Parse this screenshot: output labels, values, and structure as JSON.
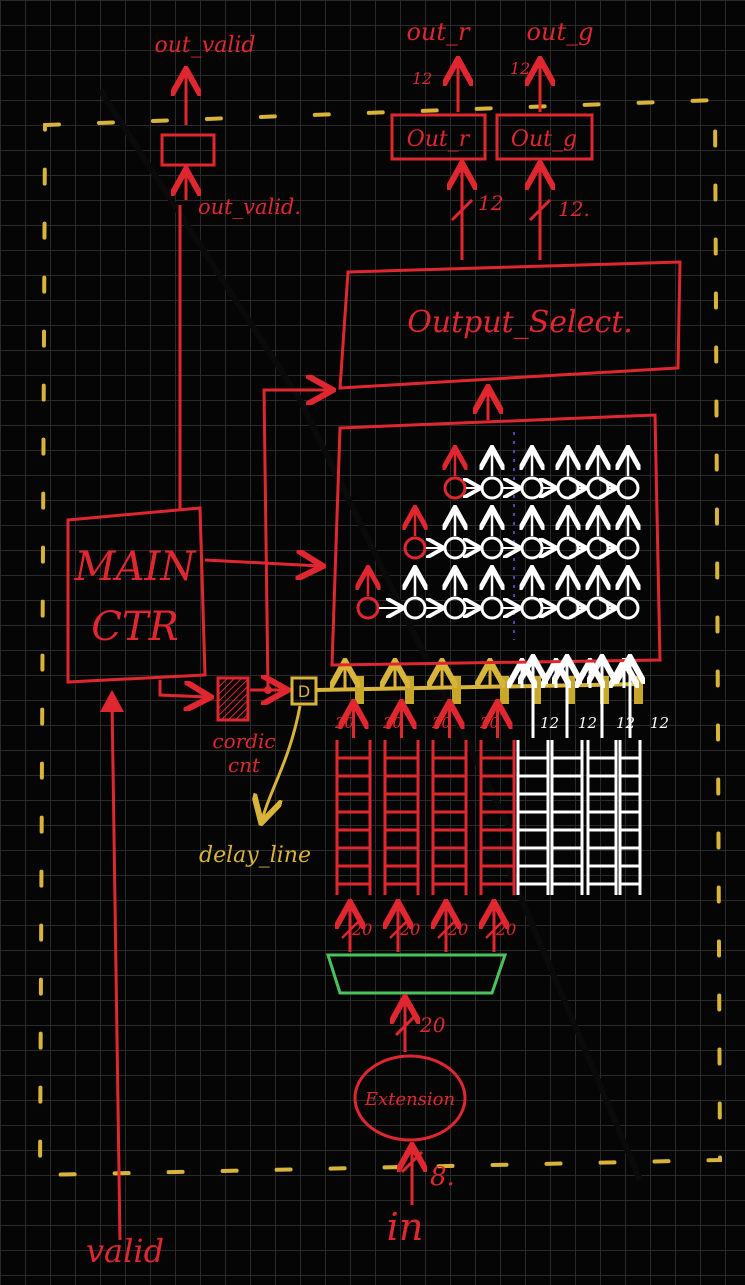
{
  "colors": {
    "wire": "#e0272f",
    "boundary": "#d8b43a",
    "delay": "#c8a82a",
    "array_node": "#ffffff",
    "adder": "#4cc35a",
    "background": "#000000"
  },
  "labels": {
    "out_valid_port": "out_valid",
    "out_r_port": "out_r",
    "out_g_port": "out_g",
    "out_r_reg": "Out_r",
    "out_g_reg": "Out_g",
    "out_valid_reg": "out_valid.",
    "output_select": "Output_Select.",
    "main_ctr_line1": "MAIN",
    "main_ctr_line2": "CTR",
    "cordic_cnt_line1": "cordic",
    "cordic_cnt_line2": "cnt",
    "delay_block": "D",
    "delay_line": "delay_line",
    "extension": "Extension",
    "in_port": "in",
    "valid_port": "valid"
  },
  "widths": {
    "out_12_left": "12",
    "out_12_right": "12",
    "sel_12_left": "12",
    "sel_12_right": "12.",
    "w20_a": "20",
    "w20_b": "20",
    "w20_c": "20",
    "w20_d": "20",
    "w12_a": "12",
    "w12_b": "12",
    "w12_c": "12",
    "w12_d": "12",
    "bus20_a": "20",
    "bus20_b": "20",
    "bus20_c": "20",
    "bus20_d": "20",
    "ext_20": "20",
    "in_8": "8."
  },
  "icons": {
    "register": "register-box",
    "delay": "d-flipflop-icon",
    "counter": "hatched-counter-icon",
    "processing_node": "circle-node-icon",
    "adder": "trapezoid-adder-icon"
  }
}
